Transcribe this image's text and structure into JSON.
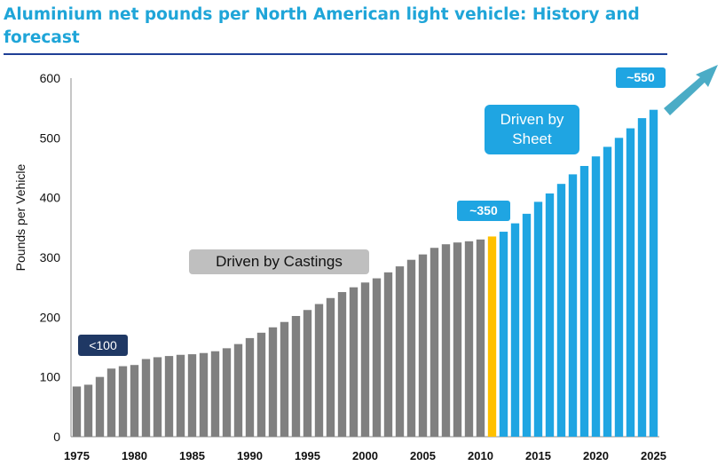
{
  "title": "Aluminium net pounds per North American light vehicle: History and forecast",
  "colors": {
    "history": "#808080",
    "current": "#ffc000",
    "forecast": "#1fa5e2",
    "title": "#1fa5d8",
    "rule": "#1f3f96",
    "arrow": "#4bacc6"
  },
  "callouts": {
    "lt100": "<100",
    "castings": "Driven by Castings",
    "sheet": "Driven by Sheet",
    "v350": "~350",
    "v550": "~550"
  },
  "chart_data": {
    "type": "bar",
    "title": "Aluminium net pounds per North American light vehicle: History and forecast",
    "ylabel": "Pounds per Vehicle",
    "xlabel": "",
    "ylim": [
      0,
      600
    ],
    "yticks": [
      0,
      100,
      200,
      300,
      400,
      500,
      600
    ],
    "xtick_labels": [
      "1975",
      "1980",
      "1985",
      "1990",
      "1995",
      "2000",
      "2005",
      "2010",
      "2015",
      "2020",
      "2025"
    ],
    "grid": false,
    "categories": [
      1975,
      1976,
      1977,
      1978,
      1979,
      1980,
      1981,
      1982,
      1983,
      1984,
      1985,
      1986,
      1987,
      1988,
      1989,
      1990,
      1991,
      1992,
      1993,
      1994,
      1995,
      1996,
      1997,
      1998,
      1999,
      2000,
      2001,
      2002,
      2003,
      2004,
      2005,
      2006,
      2007,
      2008,
      2009,
      2010,
      2011,
      2012,
      2013,
      2014,
      2015,
      2016,
      2017,
      2018,
      2019,
      2020,
      2021,
      2022,
      2023,
      2024,
      2025
    ],
    "values": [
      84,
      87,
      100,
      114,
      118,
      120,
      130,
      133,
      135,
      137,
      138,
      140,
      143,
      148,
      155,
      165,
      174,
      183,
      192,
      202,
      212,
      222,
      232,
      242,
      250,
      258,
      265,
      275,
      285,
      296,
      305,
      316,
      322,
      325,
      327,
      330,
      335,
      343,
      357,
      373,
      393,
      407,
      423,
      439,
      453,
      469,
      485,
      500,
      516,
      533,
      547
    ],
    "bar_colors": [
      "history",
      "history",
      "history",
      "history",
      "history",
      "history",
      "history",
      "history",
      "history",
      "history",
      "history",
      "history",
      "history",
      "history",
      "history",
      "history",
      "history",
      "history",
      "history",
      "history",
      "history",
      "history",
      "history",
      "history",
      "history",
      "history",
      "history",
      "history",
      "history",
      "history",
      "history",
      "history",
      "history",
      "history",
      "history",
      "history",
      "current",
      "forecast",
      "forecast",
      "forecast",
      "forecast",
      "forecast",
      "forecast",
      "forecast",
      "forecast",
      "forecast",
      "forecast",
      "forecast",
      "forecast",
      "forecast",
      "forecast"
    ]
  }
}
